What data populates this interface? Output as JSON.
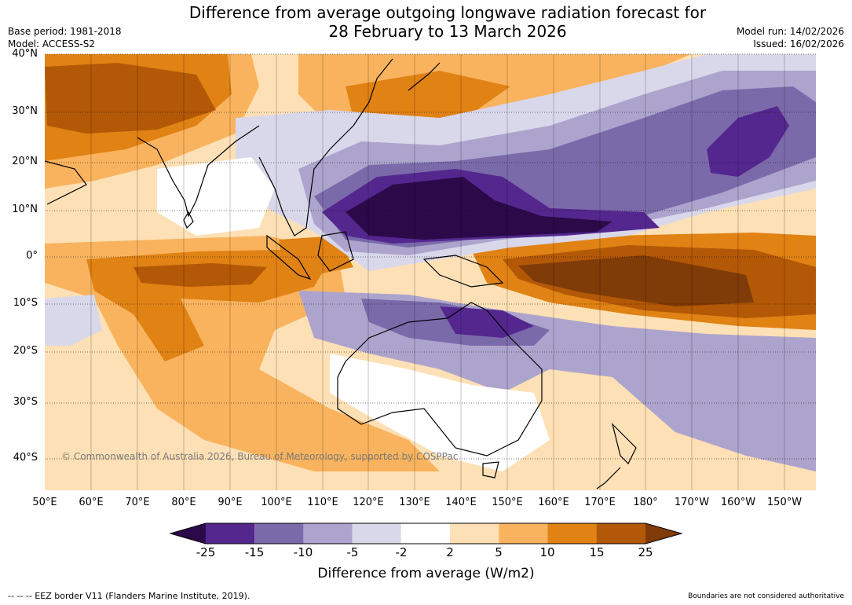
{
  "title": {
    "line1": "Difference from average outgoing longwave radiation forecast for",
    "line2": "28 February to 13 March 2026"
  },
  "meta_left": {
    "base_period": "Base period: 1981-2018",
    "model": "Model: ACCESS-S2"
  },
  "meta_right": {
    "model_run": "Model run: 14/02/2026",
    "issued": "Issued: 16/02/2026"
  },
  "lat_labels": [
    "40°N",
    "30°N",
    "20°N",
    "10°N",
    "0°",
    "10°S",
    "20°S",
    "30°S",
    "40°S"
  ],
  "lon_labels": [
    "50°E",
    "60°E",
    "70°E",
    "80°E",
    "90°E",
    "100°E",
    "110°E",
    "120°E",
    "130°E",
    "140°E",
    "150°E",
    "160°E",
    "170°E",
    "180°",
    "170°W",
    "160°W",
    "150°W"
  ],
  "copyright": "© Commonwealth of Australia 2026, Bureau of Meteorology, supported by COSPPac",
  "colorbar": {
    "ticks": [
      "-25",
      "-15",
      "-10",
      "-5",
      "-2",
      "2",
      "5",
      "10",
      "15",
      "25"
    ],
    "colors": [
      "#2c0a4a",
      "#54278f",
      "#7b6aaa",
      "#ada4cd",
      "#d9d8eb",
      "#ffffff",
      "#fde0b5",
      "#f9b35e",
      "#e08214",
      "#b35806",
      "#7f3b08"
    ],
    "title": "Difference from average (W/m2)"
  },
  "footer": {
    "left": "--  --  -- EEZ border V11 (Flanders Marine Institute, 2019).",
    "right": "Boundaries are not considered authoritative"
  }
}
